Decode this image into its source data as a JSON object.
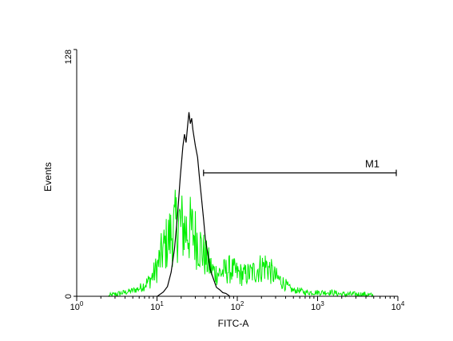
{
  "chart_data": {
    "type": "line",
    "xlabel": "FITC-A",
    "ylabel": "Events",
    "x_scale": "log",
    "xlim": [
      1,
      10000
    ],
    "ylim": [
      0,
      128
    ],
    "y_ticks": [
      {
        "value": 0,
        "label": "0"
      },
      {
        "value": 128,
        "label": "128"
      }
    ],
    "x_ticks": [
      {
        "value": 1,
        "base": "10",
        "exp": "0"
      },
      {
        "value": 10,
        "base": "10",
        "exp": "1"
      },
      {
        "value": 100,
        "base": "10",
        "exp": "2"
      },
      {
        "value": 1000,
        "base": "10",
        "exp": "3"
      },
      {
        "value": 10000,
        "base": "10",
        "exp": "4"
      }
    ],
    "marker": {
      "label": "M1",
      "x_start": 38,
      "x_end": 10000,
      "y": 64
    },
    "series": [
      {
        "color": "#000000",
        "style": "outline",
        "x": [
          10,
          12,
          13.5,
          15,
          16.5,
          18,
          19.5,
          21,
          22,
          23,
          24,
          25,
          26,
          27,
          28,
          30,
          32,
          34,
          36,
          38,
          40,
          43,
          46,
          50,
          55,
          60,
          66,
          72,
          80
        ],
        "y": [
          0,
          2,
          5,
          12,
          25,
          42,
          62,
          78,
          84,
          80,
          88,
          95,
          90,
          92,
          86,
          78,
          72,
          60,
          50,
          40,
          30,
          22,
          14,
          9,
          5,
          3,
          2,
          1,
          0
        ]
      },
      {
        "color": "#00ee00",
        "style": "noisy",
        "x": [
          2.5,
          3,
          4,
          5,
          6,
          7,
          8,
          9,
          10,
          11,
          12,
          13,
          14,
          15,
          16,
          17,
          18,
          19,
          20,
          22,
          24,
          26,
          28,
          30,
          33,
          36,
          40,
          45,
          50,
          55,
          60,
          70,
          80,
          90,
          100,
          120,
          150,
          180,
          200,
          230,
          260,
          300,
          350,
          400,
          450,
          500,
          600,
          700,
          800,
          900,
          1000,
          1200,
          1500,
          2000,
          3000,
          4000,
          5000
        ],
        "y": [
          0,
          1,
          2,
          3,
          4,
          6,
          8,
          11,
          15,
          20,
          24,
          27,
          30,
          32,
          34,
          36,
          38,
          38,
          36,
          35,
          34,
          34,
          33,
          31,
          28,
          24,
          20,
          16,
          13,
          12,
          12,
          13,
          14,
          13,
          12,
          11,
          12,
          14,
          15,
          16,
          13,
          10,
          8,
          6,
          4,
          3,
          3,
          2,
          2,
          2,
          2,
          2,
          2,
          1,
          1,
          1,
          0
        ]
      }
    ]
  }
}
